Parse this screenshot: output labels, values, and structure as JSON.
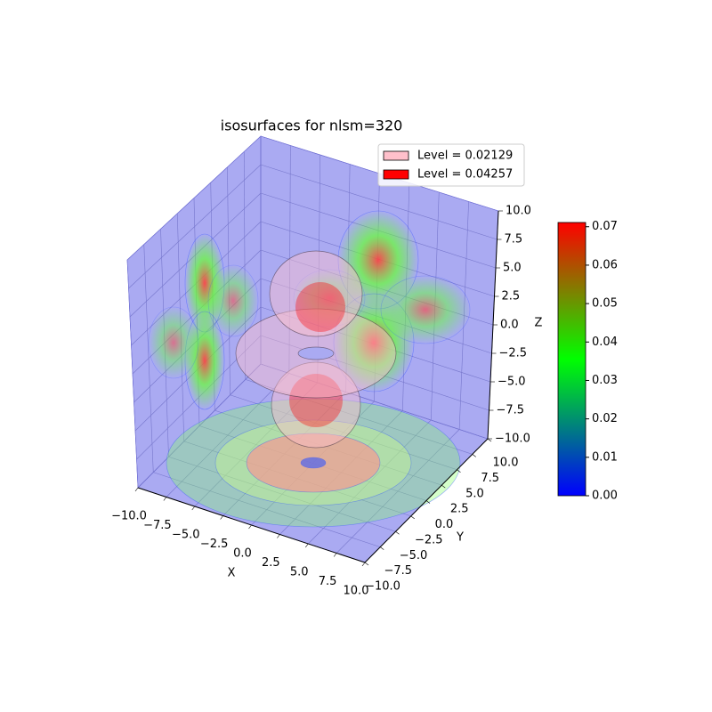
{
  "chart_data": {
    "type": "isosurface3d",
    "title": "isosurfaces for nlsm=320",
    "xlabel": "X",
    "ylabel": "Y",
    "zlabel": "Z",
    "series": [
      {
        "name": "Level = 0.02129",
        "color": "#ffc0cb"
      },
      {
        "name": "Level = 0.04257",
        "color": "#ff0000"
      }
    ],
    "xlim": [
      -10,
      10
    ],
    "ylim": [
      -10,
      10
    ],
    "zlim": [
      -10,
      10
    ],
    "xticks": [
      {
        "value": -10,
        "label": "−10.0"
      },
      {
        "value": -7.5,
        "label": "−7.5"
      },
      {
        "value": -5,
        "label": "−5.0"
      },
      {
        "value": -2.5,
        "label": "−2.5"
      },
      {
        "value": 0,
        "label": "0.0"
      },
      {
        "value": 2.5,
        "label": "2.5"
      },
      {
        "value": 5,
        "label": "5.0"
      },
      {
        "value": 7.5,
        "label": "7.5"
      },
      {
        "value": 10,
        "label": "10.0"
      }
    ],
    "yticks": [
      {
        "value": -10,
        "label": "−10.0"
      },
      {
        "value": -7.5,
        "label": "−7.5"
      },
      {
        "value": -5,
        "label": "−5.0"
      },
      {
        "value": -2.5,
        "label": "−2.5"
      },
      {
        "value": 0,
        "label": "0.0"
      },
      {
        "value": 2.5,
        "label": "2.5"
      },
      {
        "value": 5,
        "label": "5.0"
      },
      {
        "value": 7.5,
        "label": "7.5"
      },
      {
        "value": 10,
        "label": "10.0"
      }
    ],
    "zticks": [
      {
        "value": -10,
        "label": "−10.0"
      },
      {
        "value": -7.5,
        "label": "−7.5"
      },
      {
        "value": -5,
        "label": "−5.0"
      },
      {
        "value": -2.5,
        "label": "−2.5"
      },
      {
        "value": 0,
        "label": "0.0"
      },
      {
        "value": 2.5,
        "label": "2.5"
      },
      {
        "value": 5,
        "label": "5.0"
      },
      {
        "value": 7.5,
        "label": "7.5"
      },
      {
        "value": 10,
        "label": "10.0"
      }
    ],
    "pane_color": "#aaaaf2",
    "colormap": [
      "#0000ff",
      "#00ff00",
      "#ff0000"
    ],
    "clim": [
      0,
      0.0711
    ],
    "cticks": [
      {
        "value": 0,
        "label": "0.00"
      },
      {
        "value": 0.01,
        "label": "0.01"
      },
      {
        "value": 0.02,
        "label": "0.02"
      },
      {
        "value": 0.03,
        "label": "0.03"
      },
      {
        "value": 0.04,
        "label": "0.04"
      },
      {
        "value": 0.05,
        "label": "0.05"
      },
      {
        "value": 0.06,
        "label": "0.06"
      },
      {
        "value": 0.07,
        "label": "0.07"
      }
    ]
  }
}
